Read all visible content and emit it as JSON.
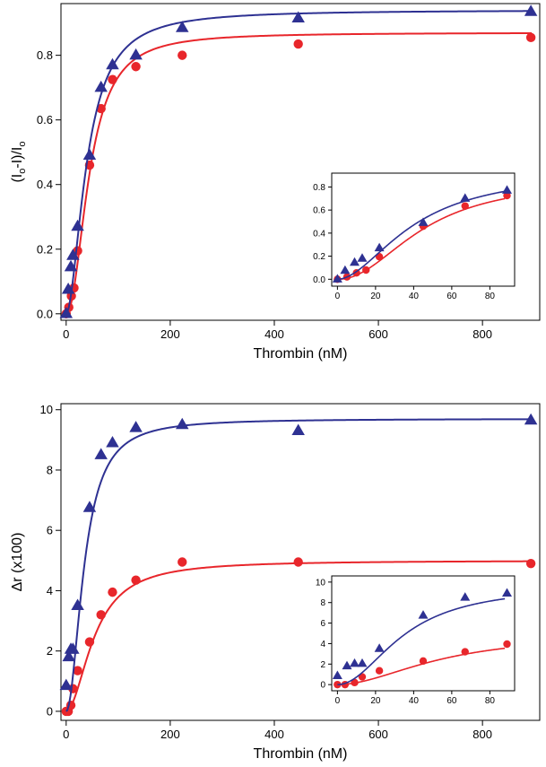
{
  "colors": {
    "series_circle": "#e8262b",
    "series_triangle": "#2e3192",
    "axis": "#000000",
    "background": "#ffffff"
  },
  "chart_data": [
    {
      "id": "top-main",
      "type": "scatter",
      "xlabel": "Thrombin (nM)",
      "ylabel_base": "(I",
      "ylabel_sub": "o",
      "ylabel_mid": "-I)/I",
      "ylabel_sub2": "o",
      "xlim": [
        -10,
        910
      ],
      "ylim": [
        -0.02,
        0.96
      ],
      "xticks": [
        0,
        200,
        400,
        600,
        800
      ],
      "xtick_labels": [
        "0",
        "200",
        "400",
        "600",
        "800"
      ],
      "yticks": [
        0.0,
        0.2,
        0.4,
        0.6,
        0.8
      ],
      "ytick_labels": [
        "0.0",
        "0.2",
        "0.4",
        "0.6",
        "0.8"
      ],
      "series": [
        {
          "marker": "circle",
          "color": "#e8262b",
          "points": [
            [
              0,
              0.0
            ],
            [
              5,
              0.02
            ],
            [
              10,
              0.055
            ],
            [
              15,
              0.08
            ],
            [
              22,
              0.195
            ],
            [
              45,
              0.46
            ],
            [
              67,
              0.635
            ],
            [
              89,
              0.725
            ],
            [
              134,
              0.765
            ],
            [
              223,
              0.8
            ],
            [
              446,
              0.835
            ],
            [
              893,
              0.855
            ]
          ],
          "fit": {
            "Bmax": 0.87,
            "Kd": 45,
            "n": 2.1
          }
        },
        {
          "marker": "triangle",
          "color": "#2e3192",
          "points": [
            [
              0,
              0.0
            ],
            [
              4,
              0.075
            ],
            [
              9,
              0.145
            ],
            [
              13,
              0.18
            ],
            [
              22,
              0.27
            ],
            [
              45,
              0.49
            ],
            [
              67,
              0.7
            ],
            [
              89,
              0.77
            ],
            [
              134,
              0.8
            ],
            [
              223,
              0.885
            ],
            [
              446,
              0.915
            ],
            [
              893,
              0.935
            ]
          ],
          "fit": {
            "Bmax": 0.94,
            "Kd": 40,
            "n": 1.85
          }
        }
      ],
      "inset": {
        "xlim": [
          -3,
          93
        ],
        "ylim": [
          -0.06,
          0.92
        ],
        "xticks": [
          0,
          20,
          40,
          60,
          80
        ],
        "xtick_labels": [
          "0",
          "20",
          "40",
          "60",
          "80"
        ],
        "yticks": [
          0.0,
          0.2,
          0.4,
          0.6,
          0.8
        ],
        "ytick_labels": [
          "0.0",
          "0.2",
          "0.4",
          "0.6",
          "0.8"
        ]
      }
    },
    {
      "id": "bottom-main",
      "type": "scatter",
      "xlabel": "Thrombin (nM)",
      "ylabel": "Δr (x100)",
      "xlim": [
        -10,
        910
      ],
      "ylim": [
        -0.3,
        10.2
      ],
      "xticks": [
        0,
        200,
        400,
        600,
        800
      ],
      "xtick_labels": [
        "0",
        "200",
        "400",
        "600",
        "800"
      ],
      "yticks": [
        0,
        2,
        4,
        6,
        8,
        10
      ],
      "ytick_labels": [
        "0",
        "2",
        "4",
        "6",
        "8",
        "10"
      ],
      "series": [
        {
          "marker": "circle",
          "color": "#e8262b",
          "points": [
            [
              0,
              0.0
            ],
            [
              4,
              0.0
            ],
            [
              9,
              0.2
            ],
            [
              13,
              0.75
            ],
            [
              22,
              1.35
            ],
            [
              45,
              2.3
            ],
            [
              67,
              3.2
            ],
            [
              89,
              3.95
            ],
            [
              134,
              4.35
            ],
            [
              223,
              4.95
            ],
            [
              446,
              4.95
            ],
            [
              893,
              4.9
            ]
          ],
          "fit": {
            "Bmax": 5.0,
            "Kd": 55,
            "n": 1.9
          }
        },
        {
          "marker": "triangle",
          "color": "#2e3192",
          "points": [
            [
              0,
              0.85
            ],
            [
              5,
              1.8
            ],
            [
              9,
              2.05
            ],
            [
              13,
              2.05
            ],
            [
              22,
              3.5
            ],
            [
              45,
              6.75
            ],
            [
              67,
              8.5
            ],
            [
              89,
              8.9
            ],
            [
              134,
              9.4
            ],
            [
              223,
              9.5
            ],
            [
              446,
              9.3
            ],
            [
              893,
              9.65
            ]
          ],
          "fit": {
            "Bmax": 9.7,
            "Kd": 35,
            "n": 2.0
          }
        }
      ],
      "inset": {
        "xlim": [
          -3,
          93
        ],
        "ylim": [
          -0.6,
          10.6
        ],
        "xticks": [
          0,
          20,
          40,
          60,
          80
        ],
        "xtick_labels": [
          "0",
          "20",
          "40",
          "60",
          "80"
        ],
        "yticks": [
          0,
          2,
          4,
          6,
          8,
          10
        ],
        "ytick_labels": [
          "0",
          "2",
          "4",
          "6",
          "8",
          "10"
        ]
      }
    }
  ]
}
